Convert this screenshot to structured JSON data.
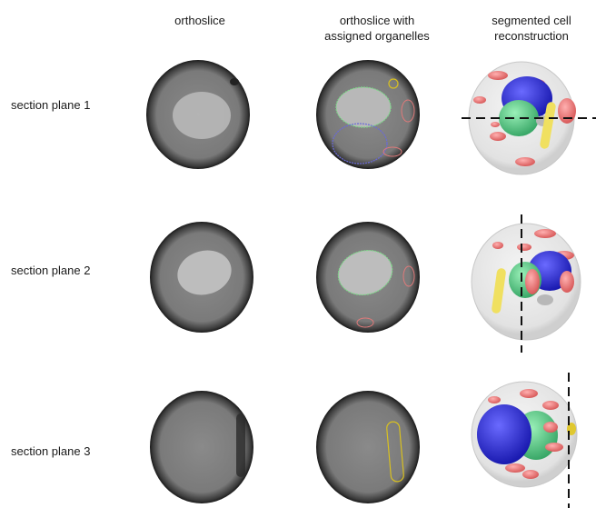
{
  "headers": {
    "orthoslice": "orthoslice",
    "assigned_line1": "orthoslice with",
    "assigned_line2": "assigned organelles",
    "segmented_line1": "segmented cell",
    "segmented_line2": "reconstruction"
  },
  "rows": [
    {
      "label": "section plane 1"
    },
    {
      "label": "section plane 2"
    },
    {
      "label": "section plane 3"
    }
  ],
  "colors": {
    "nucleus_outline": "#7fd98a",
    "vacuole_outline": "#6a6ad8",
    "lipid_outline": "#e07a7a",
    "yellow_outline": "#d8c020",
    "nucleus_fill": "#4fc88a",
    "vacuole_fill": "#2a2ae0",
    "organelle_fill": "#f08a8a",
    "yellow_fill": "#f0e060",
    "cell_shell": "#e8e8e8"
  }
}
